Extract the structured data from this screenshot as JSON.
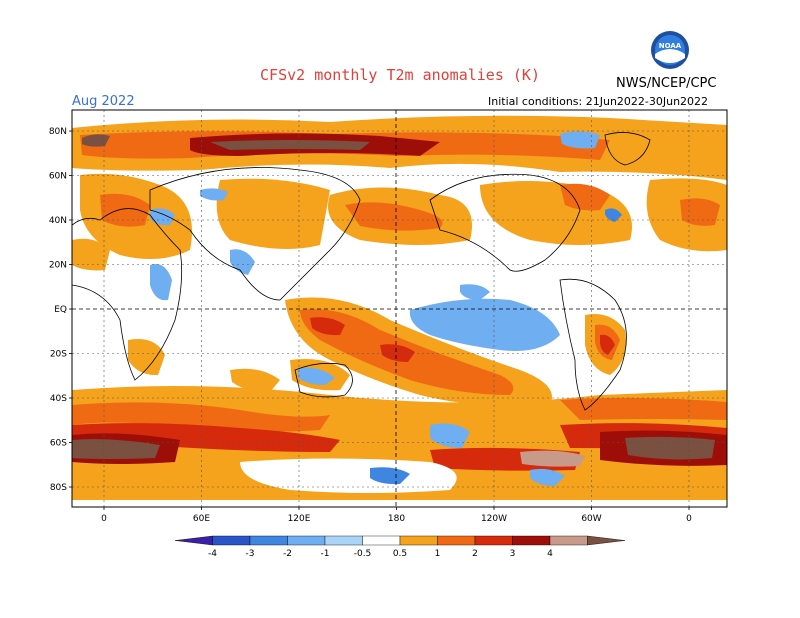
{
  "header": {
    "title": "CFSv2 monthly T2m anomalies (K)",
    "month": "Aug 2022",
    "initial_conditions": "Initial conditions: 21Jun2022-30Jun2022",
    "agency": "NWS/NCEP/CPC",
    "logo_text": "NOAA"
  },
  "map": {
    "lat_labels": [
      "80N",
      "60N",
      "40N",
      "20N",
      "EQ",
      "20S",
      "40S",
      "60S",
      "80S"
    ],
    "lat_values": [
      80,
      60,
      40,
      20,
      0,
      -20,
      -40,
      -60,
      -80
    ],
    "lon_labels": [
      "0",
      "60E",
      "120E",
      "180",
      "120W",
      "60W",
      "0"
    ],
    "lon_values": [
      0,
      60,
      120,
      180,
      240,
      300,
      360
    ]
  },
  "colorbar": {
    "labels": [
      "-4",
      "-3",
      "-2",
      "-1",
      "-0.5",
      "0.5",
      "1",
      "2",
      "3",
      "4"
    ],
    "colors": [
      "#3b1fa8",
      "#2a55c8",
      "#3e86e0",
      "#6faef0",
      "#a9d4f8",
      "#ffffff",
      "#f5a21c",
      "#f06a14",
      "#d62a0c",
      "#9e0e08",
      "#c89a8a",
      "#7a5040"
    ]
  },
  "colors": {
    "title": "#e0403a",
    "month": "#3a6fd8",
    "positive_weak": "#f5a21c",
    "positive_mid": "#f06a14",
    "positive_strong": "#d62a0c",
    "positive_extreme": "#9e0e08",
    "negative_weak": "#6faef0",
    "negative_mid": "#3e86e0"
  }
}
